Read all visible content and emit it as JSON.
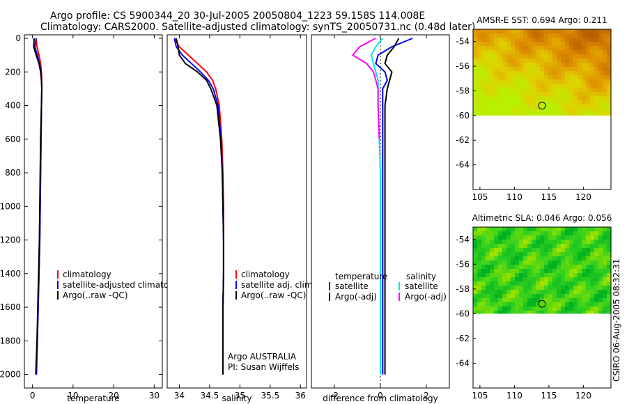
{
  "header": {
    "line1": "Argo profile: CS 5900344_20 30-Jul-2005 20050804_1223 59.158S 114.008E",
    "line2": "Climatology: CARS2000. Satellite-adjusted climatology: synTS_20050731.nc (0.48d later)"
  },
  "watermark": "CSIRO 06-Aug-2005 08:32:31",
  "chart_data": [
    {
      "id": "temperature",
      "type": "line",
      "xlabel": "temperature",
      "ylabel": "",
      "xlim": [
        -2,
        32
      ],
      "ylim": [
        2080,
        0
      ],
      "xticks": [
        0,
        10,
        20,
        30
      ],
      "yticks": [
        0,
        200,
        400,
        600,
        800,
        1000,
        1200,
        1400,
        1600,
        1800,
        2000
      ],
      "legend": {
        "position": "bottom-right",
        "items": [
          {
            "label": "climatology",
            "color": "#ff0000"
          },
          {
            "label": "satellite-adjusted climatology",
            "color": "#0000ff"
          },
          {
            "label": "Argo(..raw -QC)",
            "color": "#000000"
          }
        ]
      },
      "series": [
        {
          "name": "climatology",
          "color": "#ff0000",
          "x": [
            0.9,
            1.1,
            1.6,
            2.0,
            2.2,
            2.3,
            2.3,
            2.2,
            2.1,
            2.0,
            1.9,
            1.8,
            1.6,
            1.4,
            1.2,
            1.0
          ],
          "y": [
            0,
            50,
            100,
            150,
            200,
            250,
            300,
            400,
            600,
            800,
            1000,
            1200,
            1400,
            1600,
            1800,
            2000
          ]
        },
        {
          "name": "satellite-adjusted climatology",
          "color": "#0000ff",
          "x": [
            0.9,
            0.6,
            1.2,
            1.7,
            2.1,
            2.2,
            2.3,
            2.2,
            2.1,
            2.0,
            1.9,
            1.8,
            1.6,
            1.4,
            1.2,
            0.9
          ],
          "y": [
            0,
            50,
            100,
            150,
            200,
            250,
            300,
            400,
            600,
            800,
            1000,
            1200,
            1400,
            1600,
            1800,
            2000
          ]
        },
        {
          "name": "Argo(..raw -QC)",
          "color": "#000000",
          "x": [
            0.4,
            0.3,
            0.9,
            1.6,
            2.0,
            2.2,
            2.3,
            2.2,
            2.0,
            1.9,
            1.8,
            1.7,
            1.5,
            1.3,
            1.1,
            0.8
          ],
          "y": [
            0,
            50,
            100,
            150,
            200,
            250,
            300,
            400,
            600,
            800,
            1000,
            1200,
            1400,
            1600,
            1800,
            2000
          ]
        }
      ]
    },
    {
      "id": "salinity",
      "type": "line",
      "xlabel": "salinity",
      "ylabel": "",
      "xlim": [
        33.8,
        36.1
      ],
      "ylim": [
        2080,
        0
      ],
      "xticks": [
        34,
        34.5,
        35,
        35.5,
        36
      ],
      "yticks": [],
      "legend": {
        "position": "bottom-right",
        "items": [
          {
            "label": "climatology",
            "color": "#ff0000"
          },
          {
            "label": "satellite adj. clim.",
            "color": "#0000ff"
          },
          {
            "label": "Argo(..raw -QC)",
            "color": "#000000"
          }
        ]
      },
      "annotation": [
        "Argo AUSTRALIA",
        "PI: Susan Wijffels"
      ],
      "series": [
        {
          "name": "climatology",
          "color": "#ff0000",
          "x": [
            33.92,
            34.0,
            34.15,
            34.3,
            34.45,
            34.55,
            34.6,
            34.66,
            34.7,
            34.72,
            34.73,
            34.73,
            34.73,
            34.72,
            34.72,
            34.72
          ],
          "y": [
            0,
            50,
            100,
            150,
            200,
            250,
            300,
            400,
            600,
            800,
            1000,
            1200,
            1400,
            1600,
            1800,
            2000
          ]
        },
        {
          "name": "satellite adj. clim.",
          "color": "#0000ff",
          "x": [
            33.92,
            33.95,
            34.05,
            34.2,
            34.35,
            34.48,
            34.56,
            34.64,
            34.69,
            34.71,
            34.72,
            34.73,
            34.73,
            34.72,
            34.72,
            34.72
          ],
          "y": [
            0,
            50,
            100,
            150,
            200,
            250,
            300,
            400,
            600,
            800,
            1000,
            1200,
            1400,
            1600,
            1800,
            2000
          ]
        },
        {
          "name": "Argo(..raw -QC)",
          "color": "#000000",
          "x": [
            33.95,
            33.98,
            34.0,
            34.1,
            34.3,
            34.45,
            34.52,
            34.62,
            34.68,
            34.71,
            34.72,
            34.73,
            34.73,
            34.72,
            34.72,
            34.72
          ],
          "y": [
            0,
            50,
            100,
            150,
            200,
            250,
            300,
            400,
            600,
            800,
            1000,
            1200,
            1400,
            1600,
            1800,
            2000
          ]
        }
      ]
    },
    {
      "id": "difference",
      "type": "line",
      "xlabel": "difference from climatology",
      "ylabel": "",
      "xlim": [
        -3,
        3
      ],
      "ylim": [
        2080,
        0
      ],
      "xticks": [
        -2,
        0,
        2
      ],
      "yticks": [],
      "legend": {
        "position": "bottom-center",
        "columns": [
          {
            "title": "temperature",
            "items": [
              {
                "label": "satellite",
                "color": "#0000ff"
              },
              {
                "label": "Argo(-adj)",
                "color": "#000000"
              }
            ]
          },
          {
            "title": "salinity",
            "items": [
              {
                "label": "satellite",
                "color": "#00e5ee"
              },
              {
                "label": "Argo(-adj)",
                "color": "#ff00ff"
              }
            ]
          }
        ]
      },
      "series": [
        {
          "name": "temperature satellite",
          "color": "#0000ff",
          "x": [
            1.4,
            0.5,
            -0.1,
            -0.2,
            0.2,
            0.3,
            0.1,
            0.1,
            0.1,
            0.1,
            0.1,
            0.1,
            0.1,
            0.1,
            0.1,
            0.1
          ],
          "y": [
            0,
            50,
            100,
            150,
            200,
            250,
            300,
            400,
            600,
            800,
            1000,
            1200,
            1400,
            1600,
            1800,
            2000
          ]
        },
        {
          "name": "temperature Argo(-adj)",
          "color": "#000000",
          "x": [
            0.8,
            0.6,
            0.3,
            0.2,
            0.5,
            0.4,
            0.3,
            0.2,
            0.2,
            0.2,
            0.2,
            0.2,
            0.2,
            0.2,
            0.2,
            0.2
          ],
          "y": [
            0,
            50,
            100,
            150,
            200,
            250,
            300,
            400,
            600,
            800,
            1000,
            1200,
            1400,
            1600,
            1800,
            2000
          ]
        },
        {
          "name": "salinity satellite",
          "color": "#00e5ee",
          "x": [
            0.1,
            -0.2,
            -0.4,
            -0.3,
            -0.2,
            -0.1,
            -0.1,
            -0.1,
            -0.05,
            0.0,
            0.0,
            0.0,
            0.0,
            0.0,
            0.0,
            0.0
          ],
          "y": [
            0,
            50,
            100,
            150,
            200,
            250,
            300,
            400,
            600,
            800,
            1000,
            1200,
            1400,
            1600,
            1800,
            2000
          ]
        },
        {
          "name": "salinity Argo(-adj)",
          "color": "#ff00ff",
          "x": [
            -0.2,
            -0.9,
            -1.2,
            -0.6,
            -0.3,
            -0.2,
            -0.1,
            -0.1,
            -0.05
          ],
          "y": [
            0,
            50,
            100,
            150,
            200,
            250,
            300,
            400,
            600
          ]
        }
      ]
    },
    {
      "id": "sst_map",
      "type": "heatmap",
      "title": "AMSR-E SST: 0.694 Argo: 0.211",
      "xlim": [
        104,
        124
      ],
      "ylim": [
        -66,
        -53
      ],
      "xticks": [
        105,
        110,
        115,
        120
      ],
      "yticks": [
        -54,
        -56,
        -58,
        -60,
        -62,
        -64
      ],
      "data_lat_min": -60,
      "marker": {
        "lon": 114.0,
        "lat": -59.2
      },
      "palette": [
        "#b8f000",
        "#e0d000",
        "#e09000",
        "#b86000"
      ]
    },
    {
      "id": "sla_map",
      "type": "heatmap",
      "title": "Altimetric SLA: 0.046 Argo: 0.056",
      "xlim": [
        104,
        124
      ],
      "ylim": [
        -66,
        -53
      ],
      "xticks": [
        105,
        110,
        115,
        120
      ],
      "yticks": [
        -54,
        -56,
        -58,
        -60,
        -62,
        -64
      ],
      "data_lat_min": -60,
      "marker": {
        "lon": 114.0,
        "lat": -59.2
      },
      "palette": [
        "#00b020",
        "#30d020",
        "#90e000",
        "#e0e000"
      ]
    }
  ]
}
